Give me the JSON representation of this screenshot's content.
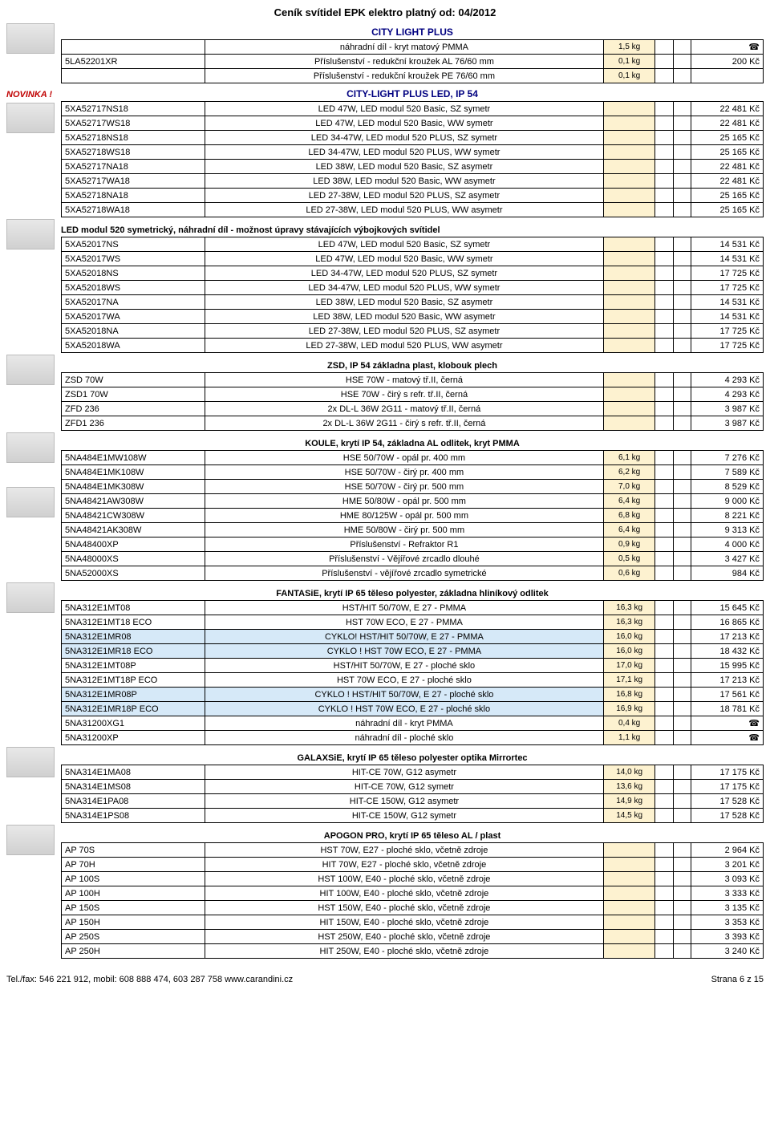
{
  "page_title": "Ceník svítidel EPK elektro platný od: 04/2012",
  "novinka_label": "NOVINKA !",
  "sec_city_light_plus": "CITY LIGHT PLUS",
  "sec_clp_led": "CITY-LIGHT PLUS LED, IP 54",
  "sec_led_modul": "LED modul 520 symetrický, náhradní díl - možnost úpravy stávajících výbojkových svítidel",
  "sec_zsd": "ZSD, IP 54 základna plast, klobouk plech",
  "sec_koule": "KOULE, krytí IP 54, základna AL odlitek, kryt PMMA",
  "sec_fant": "FANTASiE, krytí IP 65 těleso polyester, základna hliníkový odlitek",
  "sec_galax": "GALAXSiE, krytí IP 65 těleso polyester optika Mirrortec",
  "sec_apogon": "APOGON PRO, krytí IP 65 těleso AL / plast",
  "tbl_clp": [
    {
      "code": "",
      "desc": "náhradní díl - kryt matový PMMA",
      "w": "1,5 kg",
      "price": "☎"
    },
    {
      "code": "5LA52201XR",
      "desc": "Příslušenství - redukční kroužek AL 76/60 mm",
      "w": "0,1 kg",
      "price": "200 Kč"
    },
    {
      "code": "",
      "desc": "Příslušenství - redukční kroužek PE 76/60 mm",
      "w": "0,1 kg",
      "price": ""
    }
  ],
  "tbl_clp_led": [
    {
      "code": "5XA52717NS18",
      "desc": "LED 47W, LED modul 520 Basic, SZ  symetr",
      "w": "",
      "price": "22 481 Kč"
    },
    {
      "code": "5XA52717WS18",
      "desc": "LED 47W, LED modul 520 Basic, WW symetr",
      "w": "",
      "price": "22 481 Kč"
    },
    {
      "code": "5XA52718NS18",
      "desc": "LED 34-47W, LED modul 520 PLUS, SZ  symetr",
      "w": "",
      "price": "25 165 Kč"
    },
    {
      "code": "5XA52718WS18",
      "desc": "LED 34-47W, LED modul 520 PLUS, WW symetr",
      "w": "",
      "price": "25 165 Kč"
    },
    {
      "code": "5XA52717NA18",
      "desc": "LED 38W, LED modul 520 Basic, SZ  asymetr",
      "w": "",
      "price": "22 481 Kč"
    },
    {
      "code": "5XA52717WA18",
      "desc": "LED 38W, LED modul 520 Basic, WW asymetr",
      "w": "",
      "price": "22 481 Kč"
    },
    {
      "code": "5XA52718NA18",
      "desc": "LED 27-38W, LED modul 520 PLUS, SZ  asymetr",
      "w": "",
      "price": "25 165 Kč"
    },
    {
      "code": "5XA52718WA18",
      "desc": "LED 27-38W, LED modul 520 PLUS, WW asymetr",
      "w": "",
      "price": "25 165 Kč"
    }
  ],
  "tbl_ledmodul": [
    {
      "code": "5XA52017NS",
      "desc": "LED 47W, LED modul 520 Basic, SZ  symetr",
      "w": "",
      "price": "14 531 Kč"
    },
    {
      "code": "5XA52017WS",
      "desc": "LED 47W, LED modul 520 Basic, WW symetr",
      "w": "",
      "price": "14 531 Kč"
    },
    {
      "code": "5XA52018NS",
      "desc": "LED 34-47W, LED modul 520 PLUS, SZ  symetr",
      "w": "",
      "price": "17 725 Kč"
    },
    {
      "code": "5XA52018WS",
      "desc": "LED 34-47W, LED modul 520 PLUS, WW symetr",
      "w": "",
      "price": "17 725 Kč"
    },
    {
      "code": "5XA52017NA",
      "desc": "LED 38W, LED modul 520 Basic, SZ  asymetr",
      "w": "",
      "price": "14 531 Kč"
    },
    {
      "code": "5XA52017WA",
      "desc": "LED 38W, LED modul 520 Basic, WW asymetr",
      "w": "",
      "price": "14 531 Kč"
    },
    {
      "code": "5XA52018NA",
      "desc": "LED 27-38W, LED modul 520 PLUS, SZ  asymetr",
      "w": "",
      "price": "17 725 Kč"
    },
    {
      "code": "5XA52018WA",
      "desc": "LED 27-38W, LED modul 520 PLUS, WW asymetr",
      "w": "",
      "price": "17 725 Kč"
    }
  ],
  "tbl_zsd": [
    {
      "code": "ZSD 70W",
      "desc": "HSE 70W - matový tř.II, černá",
      "w": "",
      "price": "4 293 Kč"
    },
    {
      "code": "ZSD1 70W",
      "desc": "HSE 70W - čirý s refr. tř.II, černá",
      "w": "",
      "price": "4 293 Kč"
    },
    {
      "code": "ZFD 236",
      "desc": "2x DL-L 36W 2G11 - matový tř.II, černá",
      "w": "",
      "price": "3 987 Kč"
    },
    {
      "code": "ZFD1 236",
      "desc": "2x DL-L 36W 2G11 - čirý s refr. tř.II, černá",
      "w": "",
      "price": "3 987 Kč"
    }
  ],
  "tbl_koule": [
    {
      "code": "5NA484E1MW108W",
      "desc": "HSE 50/70W - opál pr. 400 mm",
      "w": "6,1 kg",
      "price": "7 276 Kč"
    },
    {
      "code": "5NA484E1MK108W",
      "desc": "HSE 50/70W - čirý pr. 400 mm",
      "w": "6,2 kg",
      "price": "7 589 Kč"
    },
    {
      "code": "5NA484E1MK308W",
      "desc": "HSE 50/70W - čirý pr. 500 mm",
      "w": "7,0 kg",
      "price": "8 529 Kč"
    },
    {
      "code": "5NA48421AW308W",
      "desc": "HME 50/80W - opál pr. 500 mm",
      "w": "6,4 kg",
      "price": "9 000 Kč"
    },
    {
      "code": "5NA48421CW308W",
      "desc": "HME 80/125W - opál pr. 500 mm",
      "w": "6,8 kg",
      "price": "8 221 Kč"
    },
    {
      "code": "5NA48421AK308W",
      "desc": "HME 50/80W - čirý pr. 500 mm",
      "w": "6,4 kg",
      "price": "9 313 Kč"
    },
    {
      "code": "5NA48400XP",
      "desc": "Příslušenství - Refraktor R1",
      "w": "0,9 kg",
      "price": "4 000 Kč"
    },
    {
      "code": "5NA48000XS",
      "desc": "Příslušenství - Vějířové zrcadlo dlouhé",
      "w": "0,5 kg",
      "price": "3 427 Kč"
    },
    {
      "code": "5NA52000XS",
      "desc": "Příslušenství - vějířové zrcadlo symetrické",
      "w": "0,6 kg",
      "price": "984 Kč"
    }
  ],
  "tbl_fant": [
    {
      "code": "5NA312E1MT08",
      "desc": "HST/HIT 50/70W, E 27 - PMMA",
      "w": "16,3 kg",
      "price": "15 645 Kč",
      "hl": false
    },
    {
      "code": "5NA312E1MT18 ECO",
      "desc": "HST 70W ECO, E 27 - PMMA",
      "w": "16,3 kg",
      "price": "16 865 Kč",
      "hl": false
    },
    {
      "code": "5NA312E1MR08",
      "desc": "CYKLO! HST/HIT 50/70W, E 27 - PMMA",
      "w": "16,0 kg",
      "price": "17 213 Kč",
      "hl": true
    },
    {
      "code": "5NA312E1MR18 ECO",
      "desc": "CYKLO ! HST 70W ECO, E 27 - PMMA",
      "w": "16,0 kg",
      "price": "18 432 Kč",
      "hl": true
    },
    {
      "code": "5NA312E1MT08P",
      "desc": "HST/HIT 50/70W, E 27 - ploché sklo",
      "w": "17,0 kg",
      "price": "15 995 Kč",
      "hl": false
    },
    {
      "code": "5NA312E1MT18P ECO",
      "desc": "HST 70W ECO, E 27 - ploché sklo",
      "w": "17,1 kg",
      "price": "17 213 Kč",
      "hl": false
    },
    {
      "code": "5NA312E1MR08P",
      "desc": "CYKLO ! HST/HIT 50/70W, E 27 - ploché sklo",
      "w": "16,8 kg",
      "price": "17 561 Kč",
      "hl": true
    },
    {
      "code": "5NA312E1MR18P ECO",
      "desc": "CYKLO ! HST 70W ECO, E 27 - ploché sklo",
      "w": "16,9 kg",
      "price": "18 781 Kč",
      "hl": true
    },
    {
      "code": "5NA31200XG1",
      "desc": "náhradní díl - kryt PMMA",
      "w": "0,4 kg",
      "price": "☎",
      "hl": false
    },
    {
      "code": "5NA31200XP",
      "desc": "náhradní díl - ploché sklo",
      "w": "1,1 kg",
      "price": "☎",
      "hl": false
    }
  ],
  "tbl_galax": [
    {
      "code": "5NA314E1MA08",
      "desc": "HIT-CE 70W, G12 asymetr",
      "w": "14,0 kg",
      "price": "17 175 Kč"
    },
    {
      "code": "5NA314E1MS08",
      "desc": "HIT-CE 70W, G12 symetr",
      "w": "13,6 kg",
      "price": "17 175 Kč"
    },
    {
      "code": "5NA314E1PA08",
      "desc": "HIT-CE 150W, G12 asymetr",
      "w": "14,9 kg",
      "price": "17 528 Kč"
    },
    {
      "code": "5NA314E1PS08",
      "desc": "HIT-CE 150W, G12 symetr",
      "w": "14,5 kg",
      "price": "17 528 Kč"
    }
  ],
  "tbl_apogon": [
    {
      "code": "AP 70S",
      "desc": "HST 70W, E27 - ploché sklo, včetně zdroje",
      "w": "",
      "price": "2 964 Kč"
    },
    {
      "code": "AP 70H",
      "desc": "HIT 70W, E27 - ploché sklo, včetně zdroje",
      "w": "",
      "price": "3 201 Kč"
    },
    {
      "code": "AP 100S",
      "desc": "HST 100W, E40 - ploché sklo, včetně zdroje",
      "w": "",
      "price": "3 093 Kč"
    },
    {
      "code": "AP 100H",
      "desc": "HIT 100W, E40 - ploché sklo, včetně zdroje",
      "w": "",
      "price": "3 333 Kč"
    },
    {
      "code": "AP 150S",
      "desc": "HST 150W, E40 - ploché sklo, včetně zdroje",
      "w": "",
      "price": "3 135 Kč"
    },
    {
      "code": "AP 150H",
      "desc": "HIT 150W, E40 - ploché sklo, včetně zdroje",
      "w": "",
      "price": "3 353 Kč"
    },
    {
      "code": "AP 250S",
      "desc": "HST 250W, E40 - ploché sklo, včetně zdroje",
      "w": "",
      "price": "3 393 Kč"
    },
    {
      "code": "AP 250H",
      "desc": "HIT 250W, E40 - ploché sklo, včetně zdroje",
      "w": "",
      "price": "3 240 Kč"
    }
  ],
  "footer_left": "Tel./fax: 546 221 912, mobil: 608 888 474, 603 287 758   www.carandini.cz",
  "footer_right": "Strana 6 z 15"
}
